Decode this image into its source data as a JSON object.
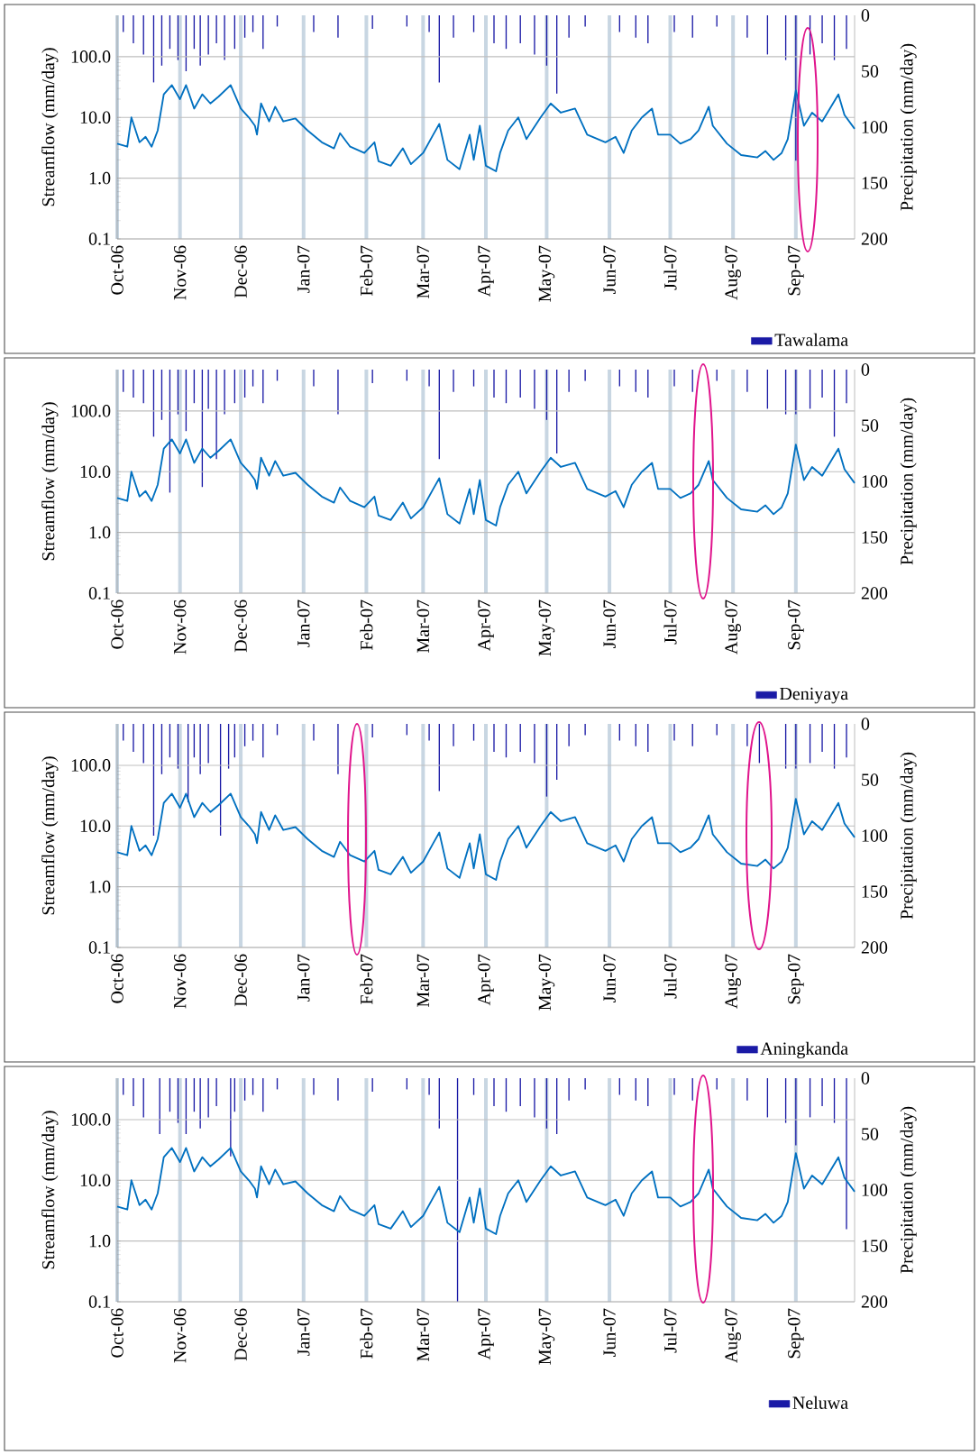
{
  "chart_data": [
    {
      "type": "line",
      "ylabel": "Streamflow (mm/day)",
      "y2label": "Precipitation (mm/day)",
      "log": "y",
      "grid": true,
      "legend": "bottom right",
      "xlim": [
        "2006-10-01",
        "2007-09-30"
      ],
      "xticks": [
        {
          "value": "2006-10-01",
          "label": "Oct-06"
        },
        {
          "value": "2006-11-01",
          "label": "Nov-06"
        },
        {
          "value": "2006-12-01",
          "label": "Dec-06"
        },
        {
          "value": "2007-01-01",
          "label": "Jan-07"
        },
        {
          "value": "2007-02-01",
          "label": "Feb-07"
        },
        {
          "value": "2007-03-01",
          "label": "Mar-07"
        },
        {
          "value": "2007-04-01",
          "label": "Apr-07"
        },
        {
          "value": "2007-05-01",
          "label": "May-07"
        },
        {
          "value": "2007-06-01",
          "label": "Jun-07"
        },
        {
          "value": "2007-07-01",
          "label": "Jul-07"
        },
        {
          "value": "2007-08-01",
          "label": "Aug-07"
        },
        {
          "value": "2007-09-01",
          "label": "Sep-07"
        }
      ],
      "ylim": [
        0.1,
        480
      ],
      "yticks": [
        {
          "value": 0.1,
          "label": "0.1"
        },
        {
          "value": 1,
          "label": "1.0"
        },
        {
          "value": 10,
          "label": "10.0"
        },
        {
          "value": 100,
          "label": "100.0"
        }
      ],
      "y2lim": [
        200,
        0
      ],
      "y2ticks": [
        0,
        50,
        100,
        150,
        200
      ],
      "series": [
        {
          "color": "#0070c0",
          "x": [
            "2006-10-01",
            "2006-10-06",
            "2006-10-08",
            "2006-10-12",
            "2006-10-15",
            "2006-10-18",
            "2006-10-21",
            "2006-10-24",
            "2006-10-28",
            "2006-11-01",
            "2006-11-04",
            "2006-11-08",
            "2006-11-12",
            "2006-11-16",
            "2006-11-20",
            "2006-11-26",
            "2006-12-01",
            "2006-12-05",
            "2006-12-08",
            "2006-12-09",
            "2006-12-11",
            "2006-12-15",
            "2006-12-18",
            "2006-12-22",
            "2006-12-28",
            "2007-01-03",
            "2007-01-10",
            "2007-01-16",
            "2007-01-19",
            "2007-01-24",
            "2007-01-31",
            "2007-02-05",
            "2007-02-07",
            "2007-02-13",
            "2007-02-19",
            "2007-02-23",
            "2007-03-01",
            "2007-03-06",
            "2007-03-09",
            "2007-03-13",
            "2007-03-19",
            "2007-03-24",
            "2007-03-26",
            "2007-03-29",
            "2007-04-01",
            "2007-04-06",
            "2007-04-08",
            "2007-04-12",
            "2007-04-17",
            "2007-04-21",
            "2007-04-28",
            "2007-05-03",
            "2007-05-08",
            "2007-05-15",
            "2007-05-21",
            "2007-05-30",
            "2007-06-04",
            "2007-06-08",
            "2007-06-12",
            "2007-06-17",
            "2007-06-22",
            "2007-06-25",
            "2007-07-01",
            "2007-07-06",
            "2007-07-11",
            "2007-07-15",
            "2007-07-20",
            "2007-07-22",
            "2007-07-29",
            "2007-08-05",
            "2007-08-13",
            "2007-08-17",
            "2007-08-21",
            "2007-08-25",
            "2007-08-28",
            "2007-09-01",
            "2007-09-05",
            "2007-09-09",
            "2007-09-14",
            "2007-09-22",
            "2007-09-25",
            "2007-09-30"
          ],
          "values": [
            3.7,
            3.3,
            10,
            3.9,
            4.8,
            3.3,
            6.1,
            24,
            34,
            20,
            34,
            14,
            24,
            17,
            22,
            34,
            14,
            10,
            7.3,
            5.2,
            17,
            8.6,
            15,
            8.6,
            9.6,
            6.1,
            3.9,
            3.1,
            5.5,
            3.3,
            2.6,
            3.9,
            1.9,
            1.6,
            3.1,
            1.7,
            2.6,
            5.2,
            7.8,
            2.0,
            1.4,
            5.2,
            2.0,
            7.3,
            1.6,
            1.3,
            2.6,
            6.1,
            10,
            4.4,
            10,
            17,
            12,
            14,
            5.2,
            3.9,
            4.8,
            2.6,
            6.1,
            10,
            14,
            5.2,
            5.2,
            3.7,
            4.4,
            6.1,
            15,
            7.3,
            3.7,
            2.4,
            2.2,
            2.8,
            2.0,
            2.6,
            4.4,
            28,
            7.3,
            12,
            8.6,
            24,
            11,
            6.5
          ]
        },
        {
          "type": "bar",
          "axis": "y2",
          "name": "Tawalama",
          "color": "#1a1aa6",
          "x": [
            "2006-10-04",
            "2006-10-09",
            "2006-10-14",
            "2006-10-19",
            "2006-10-23",
            "2006-10-27",
            "2006-10-31",
            "2006-11-04",
            "2006-11-08",
            "2006-11-11",
            "2006-11-15",
            "2006-11-19",
            "2006-11-23",
            "2006-11-28",
            "2006-12-03",
            "2006-12-07",
            "2006-12-12",
            "2006-12-19",
            "2007-01-06",
            "2007-01-18",
            "2007-02-04",
            "2007-02-21",
            "2007-03-04",
            "2007-03-09",
            "2007-03-16",
            "2007-03-26",
            "2007-04-05",
            "2007-04-11",
            "2007-04-18",
            "2007-04-25",
            "2007-05-01",
            "2007-05-06",
            "2007-05-12",
            "2007-05-20",
            "2007-06-06",
            "2007-06-14",
            "2007-06-20",
            "2007-07-03",
            "2007-07-12",
            "2007-07-24",
            "2007-08-08",
            "2007-08-18",
            "2007-08-27",
            "2007-09-01",
            "2007-09-08",
            "2007-09-14",
            "2007-09-20",
            "2007-09-26"
          ],
          "values": [
            15,
            25,
            35,
            60,
            45,
            30,
            40,
            50,
            30,
            45,
            35,
            25,
            40,
            30,
            20,
            15,
            30,
            10,
            15,
            20,
            12,
            10,
            15,
            60,
            20,
            15,
            25,
            30,
            25,
            35,
            45,
            70,
            20,
            10,
            15,
            20,
            25,
            15,
            20,
            10,
            20,
            35,
            40,
            130,
            35,
            25,
            40,
            30
          ]
        }
      ]
    },
    {
      "type": "line",
      "ylabel": "Streamflow (mm/day)",
      "y2label": "Precipitation (mm/day)",
      "log": "y",
      "grid": true,
      "legend": "bottom right",
      "xlim": [
        "2006-10-01",
        "2007-09-30"
      ],
      "xticks": [
        {
          "value": "2006-10-01",
          "label": "Oct-06"
        },
        {
          "value": "2006-11-01",
          "label": "Nov-06"
        },
        {
          "value": "2006-12-01",
          "label": "Dec-06"
        },
        {
          "value": "2007-01-01",
          "label": "Jan-07"
        },
        {
          "value": "2007-02-01",
          "label": "Feb-07"
        },
        {
          "value": "2007-03-01",
          "label": "Mar-07"
        },
        {
          "value": "2007-04-01",
          "label": "Apr-07"
        },
        {
          "value": "2007-05-01",
          "label": "May-07"
        },
        {
          "value": "2007-06-01",
          "label": "Jun-07"
        },
        {
          "value": "2007-07-01",
          "label": "Jul-07"
        },
        {
          "value": "2007-08-01",
          "label": "Aug-07"
        },
        {
          "value": "2007-09-01",
          "label": "Sep-07"
        }
      ],
      "ylim": [
        0.1,
        480
      ],
      "yticks": [
        {
          "value": 0.1,
          "label": "0.1"
        },
        {
          "value": 1,
          "label": "1.0"
        },
        {
          "value": 10,
          "label": "10.0"
        },
        {
          "value": 100,
          "label": "100.0"
        }
      ],
      "y2lim": [
        200,
        0
      ],
      "y2ticks": [
        0,
        50,
        100,
        150,
        200
      ],
      "series": [
        {
          "color": "#0070c0",
          "x": [
            "2006-10-01",
            "2006-10-06",
            "2006-10-08",
            "2006-10-12",
            "2006-10-15",
            "2006-10-18",
            "2006-10-21",
            "2006-10-24",
            "2006-10-28",
            "2006-11-01",
            "2006-11-04",
            "2006-11-08",
            "2006-11-12",
            "2006-11-16",
            "2006-11-20",
            "2006-11-26",
            "2006-12-01",
            "2006-12-05",
            "2006-12-08",
            "2006-12-09",
            "2006-12-11",
            "2006-12-15",
            "2006-12-18",
            "2006-12-22",
            "2006-12-28",
            "2007-01-03",
            "2007-01-10",
            "2007-01-16",
            "2007-01-19",
            "2007-01-24",
            "2007-01-31",
            "2007-02-05",
            "2007-02-07",
            "2007-02-13",
            "2007-02-19",
            "2007-02-23",
            "2007-03-01",
            "2007-03-06",
            "2007-03-09",
            "2007-03-13",
            "2007-03-19",
            "2007-03-24",
            "2007-03-26",
            "2007-03-29",
            "2007-04-01",
            "2007-04-06",
            "2007-04-08",
            "2007-04-12",
            "2007-04-17",
            "2007-04-21",
            "2007-04-28",
            "2007-05-03",
            "2007-05-08",
            "2007-05-15",
            "2007-05-21",
            "2007-05-30",
            "2007-06-04",
            "2007-06-08",
            "2007-06-12",
            "2007-06-17",
            "2007-06-22",
            "2007-06-25",
            "2007-07-01",
            "2007-07-06",
            "2007-07-11",
            "2007-07-15",
            "2007-07-20",
            "2007-07-22",
            "2007-07-29",
            "2007-08-05",
            "2007-08-13",
            "2007-08-17",
            "2007-08-21",
            "2007-08-25",
            "2007-08-28",
            "2007-09-01",
            "2007-09-05",
            "2007-09-09",
            "2007-09-14",
            "2007-09-22",
            "2007-09-25",
            "2007-09-30"
          ],
          "values": [
            3.7,
            3.3,
            10,
            3.9,
            4.8,
            3.3,
            6.1,
            24,
            34,
            20,
            34,
            14,
            24,
            17,
            22,
            34,
            14,
            10,
            7.3,
            5.2,
            17,
            8.6,
            15,
            8.6,
            9.6,
            6.1,
            3.9,
            3.1,
            5.5,
            3.3,
            2.6,
            3.9,
            1.9,
            1.6,
            3.1,
            1.7,
            2.6,
            5.2,
            7.8,
            2.0,
            1.4,
            5.2,
            2.0,
            7.3,
            1.6,
            1.3,
            2.6,
            6.1,
            10,
            4.4,
            10,
            17,
            12,
            14,
            5.2,
            3.9,
            4.8,
            2.6,
            6.1,
            10,
            14,
            5.2,
            5.2,
            3.7,
            4.4,
            6.1,
            15,
            7.3,
            3.7,
            2.4,
            2.2,
            2.8,
            2.0,
            2.6,
            4.4,
            28,
            7.3,
            12,
            8.6,
            24,
            11,
            6.5
          ]
        },
        {
          "type": "bar",
          "axis": "y2",
          "name": "Deniyaya",
          "color": "#1a1aa6",
          "x": [
            "2006-10-04",
            "2006-10-09",
            "2006-10-14",
            "2006-10-19",
            "2006-10-23",
            "2006-10-27",
            "2006-10-31",
            "2006-11-04",
            "2006-11-08",
            "2006-11-12",
            "2006-11-15",
            "2006-11-19",
            "2006-11-23",
            "2006-11-28",
            "2006-12-03",
            "2006-12-07",
            "2006-12-12",
            "2006-12-19",
            "2007-01-06",
            "2007-01-18",
            "2007-02-04",
            "2007-02-21",
            "2007-03-04",
            "2007-03-09",
            "2007-03-16",
            "2007-03-26",
            "2007-04-05",
            "2007-04-11",
            "2007-04-18",
            "2007-04-25",
            "2007-05-01",
            "2007-05-06",
            "2007-05-12",
            "2007-05-20",
            "2007-06-06",
            "2007-06-14",
            "2007-06-20",
            "2007-07-03",
            "2007-07-12",
            "2007-07-24",
            "2007-08-08",
            "2007-08-18",
            "2007-08-27",
            "2007-09-01",
            "2007-09-08",
            "2007-09-14",
            "2007-09-20",
            "2007-09-26"
          ],
          "values": [
            20,
            25,
            30,
            60,
            45,
            110,
            40,
            55,
            30,
            105,
            35,
            80,
            40,
            30,
            25,
            15,
            30,
            10,
            15,
            40,
            12,
            10,
            15,
            80,
            20,
            15,
            25,
            30,
            25,
            35,
            45,
            75,
            20,
            10,
            15,
            20,
            25,
            15,
            20,
            10,
            20,
            35,
            40,
            40,
            35,
            25,
            60,
            30
          ]
        }
      ]
    },
    {
      "type": "line",
      "ylabel": "Streamflow (mm/day)",
      "y2label": "Precipitation (mm/day)",
      "log": "y",
      "grid": true,
      "legend": "bottom right",
      "xlim": [
        "2006-10-01",
        "2007-09-30"
      ],
      "xticks": [
        {
          "value": "2006-10-01",
          "label": "Oct-06"
        },
        {
          "value": "2006-11-01",
          "label": "Nov-06"
        },
        {
          "value": "2006-12-01",
          "label": "Dec-06"
        },
        {
          "value": "2007-01-01",
          "label": "Jan-07"
        },
        {
          "value": "2007-02-01",
          "label": "Feb-07"
        },
        {
          "value": "2007-03-01",
          "label": "Mar-07"
        },
        {
          "value": "2007-04-01",
          "label": "Apr-07"
        },
        {
          "value": "2007-05-01",
          "label": "May-07"
        },
        {
          "value": "2007-06-01",
          "label": "Jun-07"
        },
        {
          "value": "2007-07-01",
          "label": "Jul-07"
        },
        {
          "value": "2007-08-01",
          "label": "Aug-07"
        },
        {
          "value": "2007-09-01",
          "label": "Sep-07"
        }
      ],
      "ylim": [
        0.1,
        480
      ],
      "yticks": [
        {
          "value": 0.1,
          "label": "0.1"
        },
        {
          "value": 1,
          "label": "1.0"
        },
        {
          "value": 10,
          "label": "10.0"
        },
        {
          "value": 100,
          "label": "100.0"
        }
      ],
      "y2lim": [
        200,
        0
      ],
      "y2ticks": [
        0,
        50,
        100,
        150,
        200
      ],
      "series": [
        {
          "color": "#0070c0",
          "x": [
            "2006-10-01",
            "2006-10-06",
            "2006-10-08",
            "2006-10-12",
            "2006-10-15",
            "2006-10-18",
            "2006-10-21",
            "2006-10-24",
            "2006-10-28",
            "2006-11-01",
            "2006-11-04",
            "2006-11-08",
            "2006-11-12",
            "2006-11-16",
            "2006-11-20",
            "2006-11-26",
            "2006-12-01",
            "2006-12-05",
            "2006-12-08",
            "2006-12-09",
            "2006-12-11",
            "2006-12-15",
            "2006-12-18",
            "2006-12-22",
            "2006-12-28",
            "2007-01-03",
            "2007-01-10",
            "2007-01-16",
            "2007-01-19",
            "2007-01-24",
            "2007-01-31",
            "2007-02-05",
            "2007-02-07",
            "2007-02-13",
            "2007-02-19",
            "2007-02-23",
            "2007-03-01",
            "2007-03-06",
            "2007-03-09",
            "2007-03-13",
            "2007-03-19",
            "2007-03-24",
            "2007-03-26",
            "2007-03-29",
            "2007-04-01",
            "2007-04-06",
            "2007-04-08",
            "2007-04-12",
            "2007-04-17",
            "2007-04-21",
            "2007-04-28",
            "2007-05-03",
            "2007-05-08",
            "2007-05-15",
            "2007-05-21",
            "2007-05-30",
            "2007-06-04",
            "2007-06-08",
            "2007-06-12",
            "2007-06-17",
            "2007-06-22",
            "2007-06-25",
            "2007-07-01",
            "2007-07-06",
            "2007-07-11",
            "2007-07-15",
            "2007-07-20",
            "2007-07-22",
            "2007-07-29",
            "2007-08-05",
            "2007-08-13",
            "2007-08-17",
            "2007-08-21",
            "2007-08-25",
            "2007-08-28",
            "2007-09-01",
            "2007-09-05",
            "2007-09-09",
            "2007-09-14",
            "2007-09-22",
            "2007-09-25",
            "2007-09-30"
          ],
          "values": [
            3.7,
            3.3,
            10,
            3.9,
            4.8,
            3.3,
            6.1,
            24,
            34,
            20,
            34,
            14,
            24,
            17,
            22,
            34,
            14,
            10,
            7.3,
            5.2,
            17,
            8.6,
            15,
            8.6,
            9.6,
            6.1,
            3.9,
            3.1,
            5.5,
            3.3,
            2.6,
            3.9,
            1.9,
            1.6,
            3.1,
            1.7,
            2.6,
            5.2,
            7.8,
            2.0,
            1.4,
            5.2,
            2.0,
            7.3,
            1.6,
            1.3,
            2.6,
            6.1,
            10,
            4.4,
            10,
            17,
            12,
            14,
            5.2,
            3.9,
            4.8,
            2.6,
            6.1,
            10,
            14,
            5.2,
            5.2,
            3.7,
            4.4,
            6.1,
            15,
            7.3,
            3.7,
            2.4,
            2.2,
            2.8,
            2.0,
            2.6,
            4.4,
            28,
            7.3,
            12,
            8.6,
            24,
            11,
            6.5
          ]
        },
        {
          "type": "bar",
          "axis": "y2",
          "name": "Aningkanda",
          "color": "#1a1aa6",
          "x": [
            "2006-10-04",
            "2006-10-09",
            "2006-10-14",
            "2006-10-19",
            "2006-10-23",
            "2006-10-27",
            "2006-10-31",
            "2006-11-05",
            "2006-11-08",
            "2006-11-11",
            "2006-11-15",
            "2006-11-21",
            "2006-11-25",
            "2006-11-28",
            "2006-12-03",
            "2006-12-07",
            "2006-12-12",
            "2006-12-19",
            "2007-01-06",
            "2007-01-18",
            "2007-02-04",
            "2007-02-21",
            "2007-03-04",
            "2007-03-09",
            "2007-03-16",
            "2007-03-26",
            "2007-04-05",
            "2007-04-11",
            "2007-04-18",
            "2007-04-25",
            "2007-05-01",
            "2007-05-06",
            "2007-05-12",
            "2007-05-20",
            "2007-06-06",
            "2007-06-14",
            "2007-06-20",
            "2007-07-03",
            "2007-07-12",
            "2007-07-24",
            "2007-08-08",
            "2007-08-14",
            "2007-08-27",
            "2007-09-01",
            "2007-09-08",
            "2007-09-14",
            "2007-09-20",
            "2007-09-26"
          ],
          "values": [
            15,
            25,
            35,
            100,
            45,
            30,
            40,
            70,
            30,
            45,
            35,
            100,
            40,
            30,
            20,
            15,
            30,
            10,
            15,
            45,
            12,
            10,
            15,
            60,
            20,
            15,
            25,
            30,
            25,
            35,
            65,
            50,
            20,
            10,
            15,
            20,
            25,
            15,
            20,
            10,
            20,
            35,
            40,
            40,
            35,
            25,
            40,
            30
          ]
        }
      ]
    },
    {
      "type": "line",
      "ylabel": "Streamflow (mm/day)",
      "y2label": "Precipitation (mm/day)",
      "log": "y",
      "grid": true,
      "legend": "bottom right",
      "xlim": [
        "2006-10-01",
        "2007-09-30"
      ],
      "xticks": [
        {
          "value": "2006-10-01",
          "label": "Oct-06"
        },
        {
          "value": "2006-11-01",
          "label": "Nov-06"
        },
        {
          "value": "2006-12-01",
          "label": "Dec-06"
        },
        {
          "value": "2007-01-01",
          "label": "Jan-07"
        },
        {
          "value": "2007-02-01",
          "label": "Feb-07"
        },
        {
          "value": "2007-03-01",
          "label": "Mar-07"
        },
        {
          "value": "2007-04-01",
          "label": "Apr-07"
        },
        {
          "value": "2007-05-01",
          "label": "May-07"
        },
        {
          "value": "2007-06-01",
          "label": "Jun-07"
        },
        {
          "value": "2007-07-01",
          "label": "Jul-07"
        },
        {
          "value": "2007-08-01",
          "label": "Aug-07"
        },
        {
          "value": "2007-09-01",
          "label": "Sep-07"
        }
      ],
      "ylim": [
        0.1,
        480
      ],
      "yticks": [
        {
          "value": 0.1,
          "label": "0.1"
        },
        {
          "value": 1,
          "label": "1.0"
        },
        {
          "value": 10,
          "label": "10.0"
        },
        {
          "value": 100,
          "label": "100.0"
        }
      ],
      "y2lim": [
        200,
        0
      ],
      "y2ticks": [
        0,
        50,
        100,
        150,
        200
      ],
      "series": [
        {
          "color": "#0070c0",
          "x": [
            "2006-10-01",
            "2006-10-06",
            "2006-10-08",
            "2006-10-12",
            "2006-10-15",
            "2006-10-18",
            "2006-10-21",
            "2006-10-24",
            "2006-10-28",
            "2006-11-01",
            "2006-11-04",
            "2006-11-08",
            "2006-11-12",
            "2006-11-16",
            "2006-11-20",
            "2006-11-26",
            "2006-12-01",
            "2006-12-05",
            "2006-12-08",
            "2006-12-09",
            "2006-12-11",
            "2006-12-15",
            "2006-12-18",
            "2006-12-22",
            "2006-12-28",
            "2007-01-03",
            "2007-01-10",
            "2007-01-16",
            "2007-01-19",
            "2007-01-24",
            "2007-01-31",
            "2007-02-05",
            "2007-02-07",
            "2007-02-13",
            "2007-02-19",
            "2007-02-23",
            "2007-03-01",
            "2007-03-06",
            "2007-03-09",
            "2007-03-13",
            "2007-03-19",
            "2007-03-24",
            "2007-03-26",
            "2007-03-29",
            "2007-04-01",
            "2007-04-06",
            "2007-04-08",
            "2007-04-12",
            "2007-04-17",
            "2007-04-21",
            "2007-04-28",
            "2007-05-03",
            "2007-05-08",
            "2007-05-15",
            "2007-05-21",
            "2007-05-30",
            "2007-06-04",
            "2007-06-08",
            "2007-06-12",
            "2007-06-17",
            "2007-06-22",
            "2007-06-25",
            "2007-07-01",
            "2007-07-06",
            "2007-07-11",
            "2007-07-15",
            "2007-07-20",
            "2007-07-22",
            "2007-07-29",
            "2007-08-05",
            "2007-08-13",
            "2007-08-17",
            "2007-08-21",
            "2007-08-25",
            "2007-08-28",
            "2007-09-01",
            "2007-09-05",
            "2007-09-09",
            "2007-09-14",
            "2007-09-22",
            "2007-09-25",
            "2007-09-30"
          ],
          "values": [
            3.7,
            3.3,
            10,
            3.9,
            4.8,
            3.3,
            6.1,
            24,
            34,
            20,
            34,
            14,
            24,
            17,
            22,
            34,
            14,
            10,
            7.3,
            5.2,
            17,
            8.6,
            15,
            8.6,
            9.6,
            6.1,
            3.9,
            3.1,
            5.5,
            3.3,
            2.6,
            3.9,
            1.9,
            1.6,
            3.1,
            1.7,
            2.6,
            5.2,
            7.8,
            2.0,
            1.4,
            5.2,
            2.0,
            7.3,
            1.6,
            1.3,
            2.6,
            6.1,
            10,
            4.4,
            10,
            17,
            12,
            14,
            5.2,
            3.9,
            4.8,
            2.6,
            6.1,
            10,
            14,
            5.2,
            5.2,
            3.7,
            4.4,
            6.1,
            15,
            7.3,
            3.7,
            2.4,
            2.2,
            2.8,
            2.0,
            2.6,
            4.4,
            28,
            7.3,
            12,
            8.6,
            24,
            11,
            6.5
          ]
        },
        {
          "type": "bar",
          "axis": "y2",
          "name": "Neluwa",
          "color": "#1a1aa6",
          "x": [
            "2006-10-04",
            "2006-10-09",
            "2006-10-14",
            "2006-10-22",
            "2006-10-27",
            "2006-10-31",
            "2006-11-04",
            "2006-11-08",
            "2006-11-11",
            "2006-11-15",
            "2006-11-19",
            "2006-11-26",
            "2006-11-28",
            "2006-12-03",
            "2006-12-07",
            "2006-12-12",
            "2006-12-19",
            "2007-01-06",
            "2007-01-18",
            "2007-02-04",
            "2007-02-21",
            "2007-03-04",
            "2007-03-09",
            "2007-03-18",
            "2007-03-26",
            "2007-04-05",
            "2007-04-11",
            "2007-04-18",
            "2007-04-25",
            "2007-05-01",
            "2007-05-06",
            "2007-05-12",
            "2007-05-20",
            "2007-06-06",
            "2007-06-14",
            "2007-06-20",
            "2007-07-03",
            "2007-07-12",
            "2007-07-24",
            "2007-08-08",
            "2007-08-18",
            "2007-08-27",
            "2007-09-01",
            "2007-09-08",
            "2007-09-14",
            "2007-09-20",
            "2007-09-26"
          ],
          "values": [
            15,
            25,
            35,
            50,
            30,
            40,
            50,
            30,
            45,
            35,
            25,
            70,
            30,
            20,
            15,
            30,
            10,
            15,
            20,
            12,
            10,
            15,
            45,
            200,
            15,
            25,
            30,
            25,
            35,
            45,
            50,
            20,
            10,
            15,
            20,
            25,
            15,
            20,
            10,
            20,
            35,
            40,
            60,
            35,
            25,
            40,
            135
          ]
        }
      ]
    }
  ]
}
